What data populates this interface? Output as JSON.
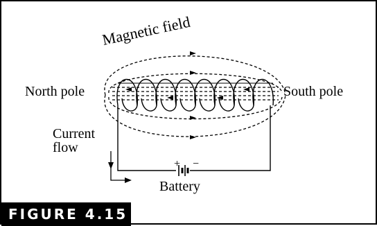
{
  "figure": {
    "tag": "FIGURE 4.15"
  },
  "labels": {
    "magnetic_field": "Magnetic field",
    "north_pole": "North pole",
    "south_pole": "South pole",
    "current_line1": "Current",
    "current_line2": "flow",
    "battery": "Battery",
    "battery_plus": "+",
    "battery_minus": "−"
  },
  "diagram": {
    "coil_turns": 8
  }
}
